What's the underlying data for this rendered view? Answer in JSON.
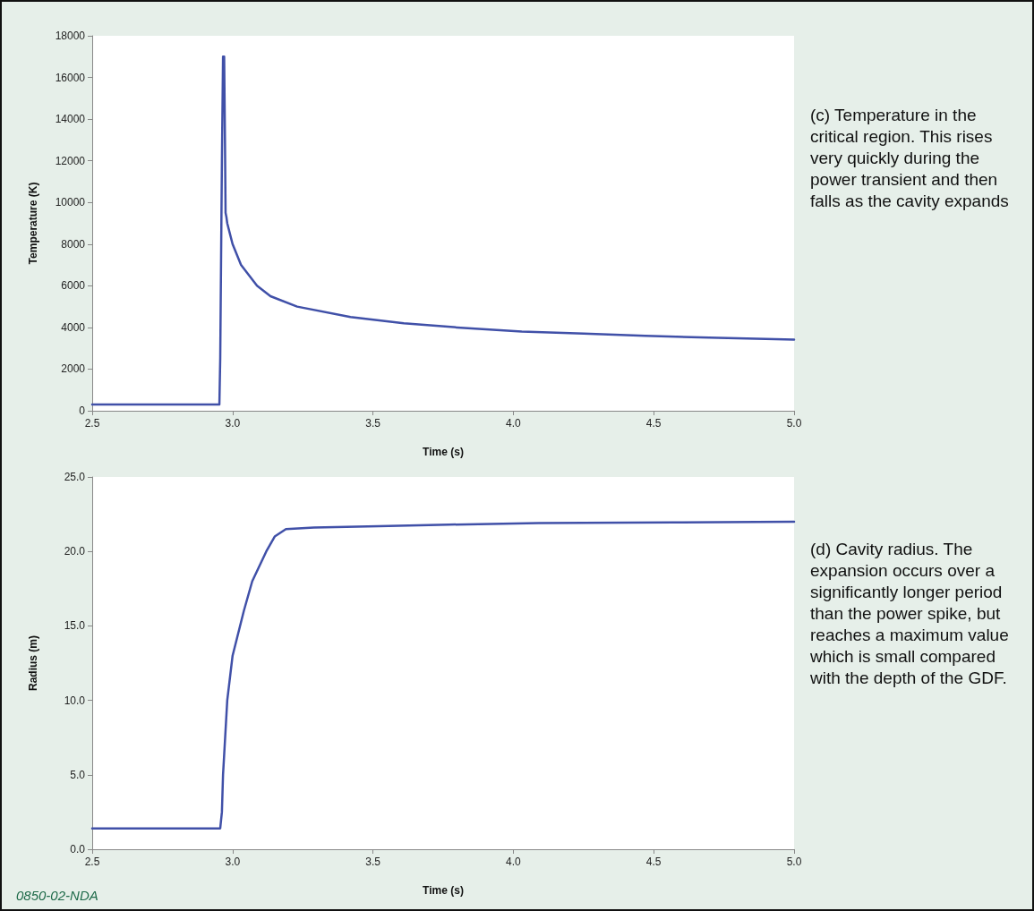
{
  "chart_data": [
    {
      "type": "line",
      "xlabel": "Time (s)",
      "ylabel": "Temperature (K)",
      "xlim": [
        2.5,
        5.0
      ],
      "xticks": [
        2.5,
        {
          "value": 3,
          "label": "3.0"
        },
        3.5,
        {
          "value": 4,
          "label": "4.0"
        },
        4.5,
        {
          "value": 5,
          "label": "5.0"
        }
      ],
      "ylim": [
        0,
        18000
      ],
      "yticks": [
        0,
        2000,
        4000,
        6000,
        8000,
        10000,
        12000,
        14000,
        16000,
        18000
      ],
      "grid": false,
      "marker": "none",
      "line_style": "solid",
      "annotations": [
        "(c)  Temperature in the critical region. This rises very quickly during the power transient and then falls as the cavity expands"
      ],
      "series": [
        {
          "color": "#4050a8",
          "x": [
            2.5,
            2.953,
            2.956,
            2.962,
            2.966,
            2.97,
            2.973,
            2.975,
            2.978,
            2.981,
            3.0,
            3.03,
            3.087,
            3.135,
            3.23,
            3.42,
            3.61,
            3.8,
            4.03,
            4.25,
            4.47,
            4.73,
            5.0
          ],
          "values": [
            300,
            300,
            2500,
            12000,
            17000,
            17000,
            12800,
            9500,
            9300,
            9000,
            8000,
            7000,
            6000,
            5500,
            5000,
            4500,
            4200,
            4000,
            3800,
            3700,
            3600,
            3500,
            3420
          ]
        }
      ]
    },
    {
      "type": "line",
      "xlabel": "Time (s)",
      "ylabel": "Radius (m)",
      "xlim": [
        2.5,
        5.0
      ],
      "xticks": [
        2.5,
        {
          "value": 3,
          "label": "3.0"
        },
        3.5,
        {
          "value": 4,
          "label": "4.0"
        },
        4.5,
        {
          "value": 5,
          "label": "5.0"
        }
      ],
      "ylim": [
        0,
        25
      ],
      "yticks": [
        {
          "value": 0,
          "label": "0.0"
        },
        {
          "value": 5,
          "label": "5.0"
        },
        {
          "value": 10,
          "label": "10.0"
        },
        {
          "value": 15,
          "label": "15.0"
        },
        {
          "value": 20,
          "label": "20.0"
        },
        {
          "value": 25,
          "label": "25.0"
        }
      ],
      "grid": false,
      "marker": "none",
      "line_style": "solid",
      "annotations": [
        "(d)  Cavity radius. The expansion occurs over a significantly longer period than the power spike, but reaches a maximum value which is small compared with the depth of the GDF.",
        "0850-02-NDA"
      ],
      "series": [
        {
          "color": "#4050a8",
          "x": [
            2.5,
            2.956,
            2.962,
            2.966,
            2.981,
            3.0,
            3.04,
            3.07,
            3.12,
            3.15,
            3.19,
            3.29,
            3.52,
            3.77,
            4.09,
            4.57,
            5.0
          ],
          "values": [
            1.4,
            1.4,
            2.5,
            5.0,
            10.0,
            13.0,
            16.0,
            18.0,
            20.0,
            21.0,
            21.5,
            21.6,
            21.7,
            21.8,
            21.9,
            21.95,
            22.0
          ]
        }
      ]
    }
  ]
}
